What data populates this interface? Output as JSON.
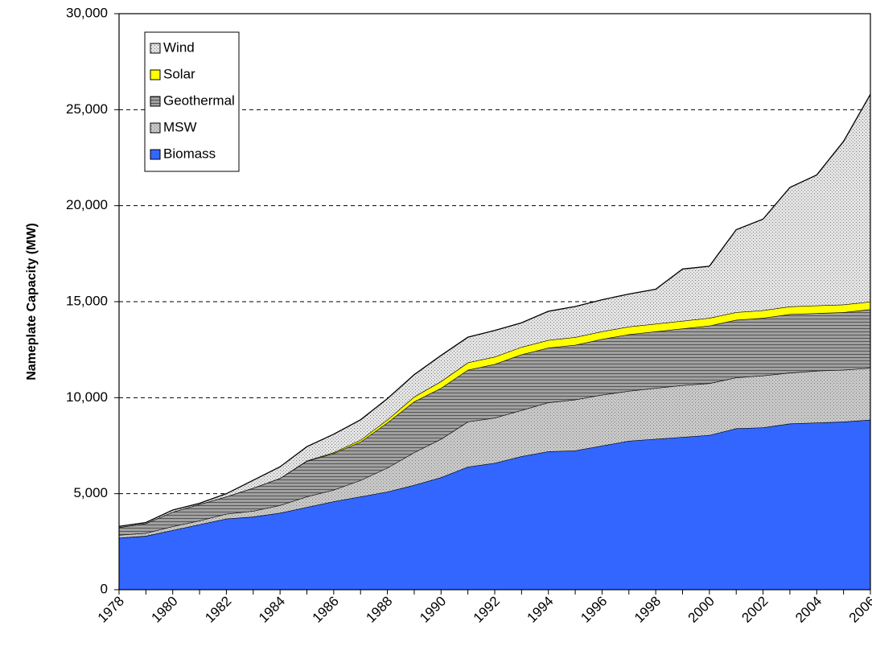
{
  "chart_data": {
    "type": "stacked_area",
    "y_label": "Nameplate Capacity (MW)",
    "categories": [
      "1978",
      null,
      "1980",
      null,
      "1982",
      null,
      "1984",
      null,
      "1986",
      null,
      "1988",
      null,
      "1990",
      null,
      "1992",
      null,
      "1994",
      null,
      "1996",
      null,
      "1998",
      null,
      "2000",
      null,
      "2002",
      null,
      "2004",
      null,
      "2006"
    ],
    "series": [
      {
        "name": "Biomass",
        "color": "#3366ff",
        "pattern": "solid",
        "values": [
          2700,
          2800,
          3100,
          3400,
          3700,
          3800,
          4000,
          4300,
          4600,
          4850,
          5100,
          5450,
          5850,
          6400,
          6600,
          6950,
          7200,
          7250,
          7500,
          7750,
          7850,
          7950,
          8050,
          8400,
          8450,
          8650,
          8700,
          8750,
          8850
        ]
      },
      {
        "name": "MSW",
        "color": "#c8c8c8",
        "pattern": "dots",
        "values": [
          150,
          150,
          200,
          200,
          250,
          300,
          400,
          550,
          600,
          850,
          1250,
          1700,
          2000,
          2350,
          2350,
          2400,
          2550,
          2650,
          2650,
          2600,
          2650,
          2700,
          2700,
          2650,
          2700,
          2650,
          2700,
          2700,
          2700
        ]
      },
      {
        "name": "Geothermal",
        "color": "#a0a0a0",
        "pattern": "hlines",
        "values": [
          400,
          500,
          750,
          850,
          900,
          1200,
          1400,
          1850,
          1900,
          2000,
          2350,
          2650,
          2650,
          2700,
          2800,
          2900,
          2850,
          2850,
          2900,
          2950,
          2950,
          2950,
          3000,
          3000,
          3000,
          3050,
          3000,
          3000,
          3050
        ]
      },
      {
        "name": "Solar",
        "color": "#ffff00",
        "pattern": "solid",
        "values": [
          0,
          0,
          0,
          0,
          0,
          0,
          10,
          20,
          50,
          100,
          150,
          250,
          350,
          380,
          380,
          390,
          400,
          400,
          400,
          400,
          400,
          400,
          400,
          400,
          400,
          400,
          400,
          400,
          400
        ]
      },
      {
        "name": "Wind",
        "color": "#e4e4e4",
        "pattern": "dots",
        "values": [
          50,
          50,
          100,
          50,
          150,
          400,
          590,
          730,
          950,
          1050,
          1100,
          1150,
          1350,
          1320,
          1370,
          1260,
          1500,
          1600,
          1650,
          1700,
          1800,
          2700,
          2700,
          4300,
          4750,
          6200,
          6800,
          8500,
          10800
        ]
      }
    ],
    "ylim": [
      0,
      30000
    ],
    "yticks": [
      0,
      {
        "value": 5000,
        "label": "5,000"
      },
      {
        "value": 10000,
        "label": "10,000"
      },
      {
        "value": 15000,
        "label": "15,000"
      },
      {
        "value": 20000,
        "label": "20,000"
      },
      {
        "value": 25000,
        "label": "25,000"
      },
      {
        "value": 30000,
        "label": "30,000"
      }
    ],
    "grid": true,
    "legend": "upper left"
  }
}
